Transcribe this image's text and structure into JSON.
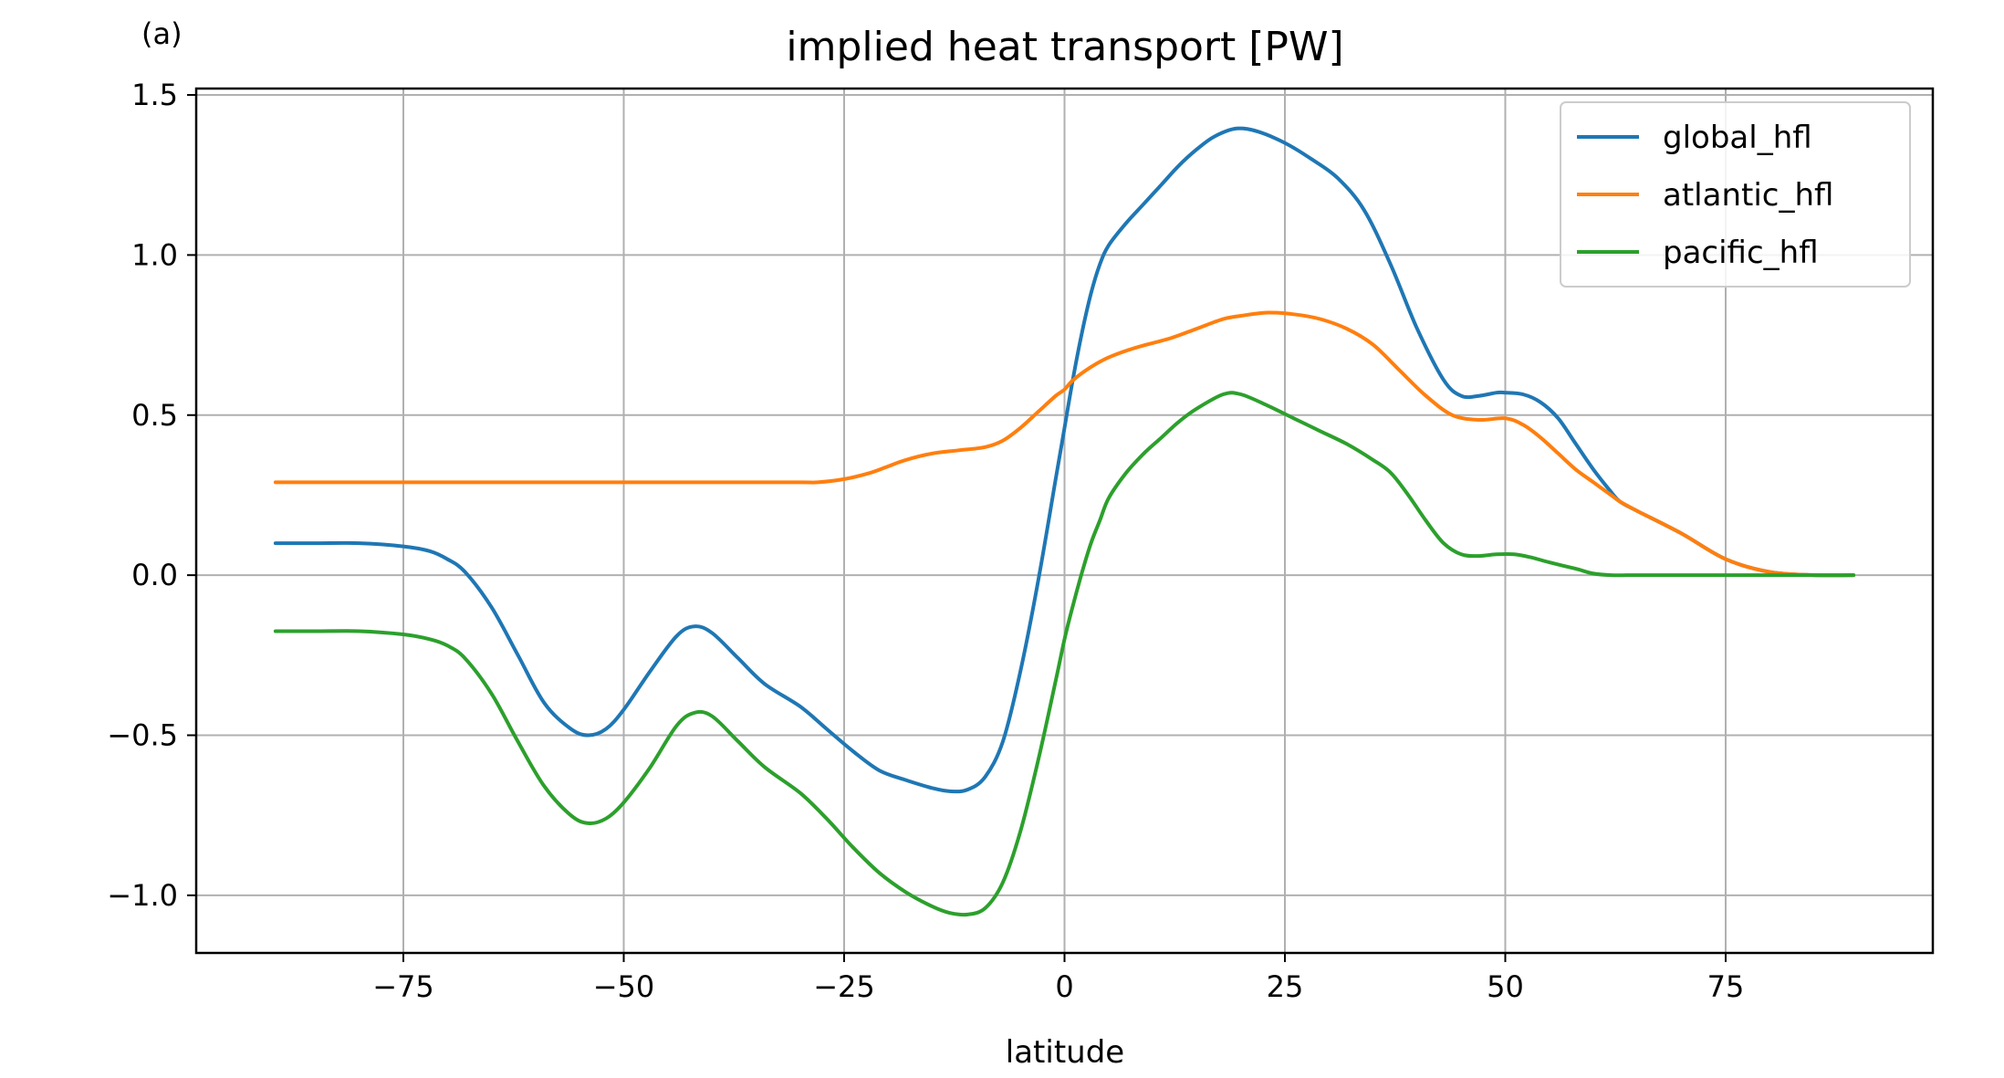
{
  "chart_data": {
    "type": "line",
    "panel_label": "(a)",
    "title": "implied heat transport [PW]",
    "xlabel": "latitude",
    "ylabel": "",
    "xlim": [
      -98.5,
      98.5
    ],
    "ylim": [
      -1.18,
      1.52
    ],
    "xticks": [
      -75,
      -50,
      -25,
      0,
      25,
      50,
      75
    ],
    "xtick_labels": [
      "−75",
      "−50",
      "−25",
      "0",
      "25",
      "50",
      "75"
    ],
    "yticks": [
      -1.0,
      -0.5,
      0.0,
      0.5,
      1.0,
      1.5
    ],
    "ytick_labels": [
      "−1.0",
      "−0.5",
      "0.0",
      "0.5",
      "1.0",
      "1.5"
    ],
    "grid": true,
    "legend_position": "top-right",
    "series": [
      {
        "name": "global_hfl",
        "color": "#1f77b4",
        "x": [
          -89.5,
          -85,
          -80,
          -75,
          -72,
          -70,
          -68,
          -65,
          -62,
          -59,
          -56,
          -54,
          -52,
          -50,
          -47,
          -44,
          -42,
          -40,
          -37,
          -34,
          -30,
          -27,
          -24,
          -21,
          -18,
          -15,
          -13,
          -11,
          -9,
          -7,
          -5,
          -3,
          -1,
          0,
          1,
          2,
          3,
          4,
          5,
          7,
          9,
          11,
          13,
          15,
          17,
          19.5,
          22,
          25,
          28,
          31,
          34,
          37,
          40,
          43,
          45,
          47,
          49,
          50,
          52,
          54,
          56,
          58,
          60,
          62,
          63,
          65,
          70,
          75,
          80,
          85,
          89.5
        ],
        "values": [
          0.1,
          0.1,
          0.1,
          0.09,
          0.075,
          0.05,
          0.01,
          -0.1,
          -0.25,
          -0.4,
          -0.48,
          -0.5,
          -0.48,
          -0.42,
          -0.3,
          -0.19,
          -0.16,
          -0.18,
          -0.26,
          -0.34,
          -0.41,
          -0.48,
          -0.55,
          -0.61,
          -0.64,
          -0.665,
          -0.675,
          -0.67,
          -0.63,
          -0.52,
          -0.3,
          -0.02,
          0.3,
          0.46,
          0.62,
          0.76,
          0.88,
          0.97,
          1.03,
          1.1,
          1.16,
          1.22,
          1.28,
          1.33,
          1.37,
          1.395,
          1.385,
          1.35,
          1.3,
          1.24,
          1.14,
          0.97,
          0.77,
          0.61,
          0.56,
          0.56,
          0.57,
          0.57,
          0.565,
          0.54,
          0.49,
          0.41,
          0.33,
          0.26,
          0.23,
          0.2,
          0.13,
          0.05,
          0.01,
          0.0,
          0.0
        ]
      },
      {
        "name": "atlantic_hfl",
        "color": "#ff7f0e",
        "x": [
          -89.5,
          -80,
          -70,
          -60,
          -50,
          -40,
          -30,
          -28,
          -25,
          -22,
          -20,
          -18,
          -15,
          -12,
          -9,
          -7,
          -5,
          -3,
          -1,
          0,
          1,
          3,
          5,
          8,
          12,
          15,
          18,
          20,
          23,
          26,
          29,
          32,
          35,
          38,
          41,
          44,
          47,
          50,
          52,
          54,
          56,
          58,
          60,
          62,
          63,
          65,
          70,
          75,
          80,
          85,
          89.5
        ],
        "values": [
          0.29,
          0.29,
          0.29,
          0.29,
          0.29,
          0.29,
          0.29,
          0.29,
          0.3,
          0.32,
          0.34,
          0.36,
          0.38,
          0.39,
          0.4,
          0.42,
          0.46,
          0.51,
          0.56,
          0.58,
          0.61,
          0.65,
          0.68,
          0.71,
          0.74,
          0.77,
          0.8,
          0.81,
          0.82,
          0.815,
          0.8,
          0.77,
          0.72,
          0.64,
          0.56,
          0.5,
          0.485,
          0.49,
          0.47,
          0.43,
          0.38,
          0.33,
          0.29,
          0.25,
          0.23,
          0.2,
          0.13,
          0.05,
          0.01,
          0.0,
          0.0
        ]
      },
      {
        "name": "pacific_hfl",
        "color": "#2ca02c",
        "x": [
          -89.5,
          -85,
          -80,
          -75,
          -72,
          -70,
          -68,
          -65,
          -62,
          -59,
          -56,
          -54,
          -52,
          -50,
          -47,
          -44,
          -42,
          -40,
          -37,
          -34,
          -30,
          -27,
          -24,
          -21,
          -18,
          -15,
          -13,
          -11,
          -9,
          -7,
          -5,
          -3,
          -1,
          0,
          1,
          2,
          3,
          4,
          5,
          7,
          9,
          11,
          13,
          15,
          18,
          20,
          23,
          26,
          29,
          32,
          35,
          37,
          39,
          41,
          43,
          45,
          47,
          49,
          51,
          53,
          55,
          58,
          60,
          62,
          65,
          70,
          75,
          80,
          85,
          89.5
        ],
        "values": [
          -0.175,
          -0.175,
          -0.175,
          -0.185,
          -0.2,
          -0.22,
          -0.26,
          -0.37,
          -0.52,
          -0.66,
          -0.75,
          -0.775,
          -0.76,
          -0.71,
          -0.6,
          -0.47,
          -0.43,
          -0.44,
          -0.52,
          -0.6,
          -0.68,
          -0.76,
          -0.85,
          -0.93,
          -0.99,
          -1.035,
          -1.055,
          -1.06,
          -1.04,
          -0.96,
          -0.8,
          -0.58,
          -0.33,
          -0.2,
          -0.09,
          0.01,
          0.1,
          0.17,
          0.24,
          0.32,
          0.38,
          0.43,
          0.48,
          0.52,
          0.565,
          0.565,
          0.53,
          0.49,
          0.45,
          0.41,
          0.36,
          0.32,
          0.25,
          0.17,
          0.1,
          0.065,
          0.06,
          0.065,
          0.065,
          0.055,
          0.04,
          0.02,
          0.005,
          0.0,
          0.0,
          0.0,
          0.0,
          0.0,
          0.0,
          0.0
        ]
      }
    ]
  }
}
